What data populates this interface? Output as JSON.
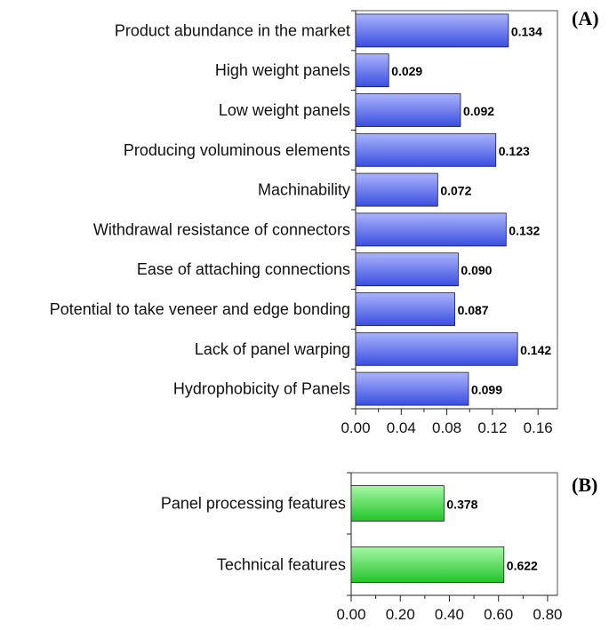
{
  "chart_data": [
    {
      "type": "bar",
      "orientation": "horizontal",
      "panel_label": "(A)",
      "categories": [
        "Product abundance in the market",
        "High weight panels",
        "Low weight panels",
        "Producing voluminous elements",
        "Machinability",
        "Withdrawal resistance of connectors",
        "Ease of attaching connections",
        "Potential to take veneer and edge bonding",
        "Lack of panel warping",
        "Hydrophobicity of Panels"
      ],
      "values": [
        0.134,
        0.029,
        0.092,
        0.123,
        0.072,
        0.132,
        0.09,
        0.087,
        0.142,
        0.099
      ],
      "value_labels": [
        "0.134",
        "0.029",
        "0.092",
        "0.123",
        "0.072",
        "0.132",
        "0.090",
        "0.087",
        "0.142",
        "0.099"
      ],
      "xlim": [
        0,
        0.177
      ],
      "xticks": [
        0,
        0.04,
        0.08,
        0.12,
        0.16
      ],
      "xtick_labels": [
        "0.00",
        "0.04",
        "0.08",
        "0.12",
        "0.16"
      ],
      "bar_color": "#3a4ee0",
      "bar_color_light": "#aab4fb",
      "grid": false
    },
    {
      "type": "bar",
      "orientation": "horizontal",
      "panel_label": "(B)",
      "categories": [
        "Panel processing features",
        "Technical features"
      ],
      "values": [
        0.378,
        0.622
      ],
      "value_labels": [
        "0.378",
        "0.622"
      ],
      "xlim": [
        0,
        0.84
      ],
      "xticks": [
        0,
        0.2,
        0.4,
        0.6,
        0.8
      ],
      "xtick_labels": [
        "0.00",
        "0.20",
        "0.40",
        "0.60",
        "0.80"
      ],
      "bar_color": "#22c42a",
      "bar_color_light": "#a6f7a4",
      "grid": false
    }
  ]
}
